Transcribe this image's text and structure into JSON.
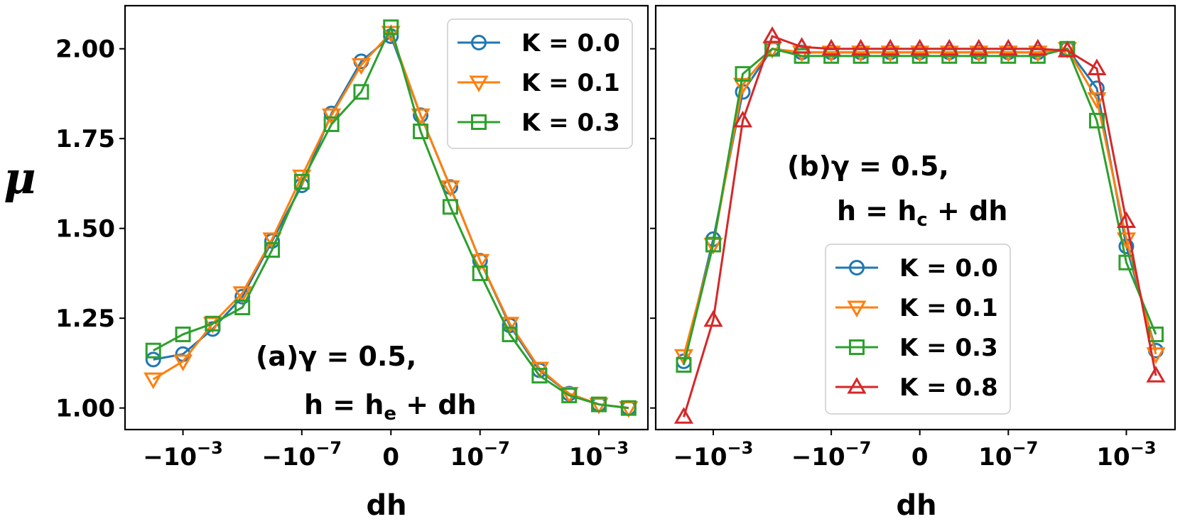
{
  "chart_data": [
    {
      "type": "line",
      "panel": "(a)",
      "annotation_line1": "(a)γ = 0.5,",
      "annotation_line2": "h = h",
      "annotation_sub": "e",
      "annotation_line2_rest": " + dh",
      "xlabel": "dh",
      "ylabel": "μ",
      "ylim": [
        0.94,
        2.12
      ],
      "yticks": [
        "1.00",
        "1.25",
        "1.50",
        "1.75",
        "2.00"
      ],
      "ytick_values": [
        1.0,
        1.25,
        1.5,
        1.75,
        2.0
      ],
      "xticks": [
        {
          "index": 1,
          "base": "−10",
          "exp": "−3"
        },
        {
          "index": 5,
          "base": "−10",
          "exp": "−7"
        },
        {
          "index": 8,
          "base": "0",
          "exp": ""
        },
        {
          "index": 11,
          "base": "10",
          "exp": "−7"
        },
        {
          "index": 15,
          "base": "10",
          "exp": "−3"
        }
      ],
      "x_index_range": [
        -0.95,
        16.65
      ],
      "legend_position": "upper right",
      "series": [
        {
          "name": "K = 0.0",
          "color": "#1f77b4",
          "marker": "circle",
          "x": [
            0,
            1,
            2,
            3,
            4,
            5,
            6,
            7,
            8,
            9,
            10,
            11,
            12,
            13,
            14,
            15,
            16
          ],
          "values": [
            1.135,
            1.15,
            1.22,
            1.31,
            1.465,
            1.62,
            1.82,
            1.965,
            2.035,
            1.815,
            1.615,
            1.41,
            1.23,
            1.105,
            1.04,
            1.01,
            1.0
          ]
        },
        {
          "name": "K = 0.1",
          "color": "#ff7f0e",
          "marker": "triangle-down",
          "x": [
            0,
            1,
            2,
            3,
            4,
            5,
            6,
            7,
            8,
            9,
            10,
            11,
            12,
            13,
            14,
            15,
            16
          ],
          "values": [
            1.08,
            1.13,
            1.235,
            1.32,
            1.47,
            1.645,
            1.815,
            1.955,
            2.045,
            1.815,
            1.615,
            1.41,
            1.235,
            1.11,
            1.04,
            1.01,
            1.0
          ]
        },
        {
          "name": "K = 0.3",
          "color": "#2ca02c",
          "marker": "square",
          "x": [
            0,
            1,
            2,
            3,
            4,
            5,
            6,
            7,
            8,
            9,
            10,
            11,
            12,
            13,
            14,
            15,
            16
          ],
          "values": [
            1.16,
            1.205,
            1.235,
            1.28,
            1.44,
            1.63,
            1.79,
            1.88,
            2.06,
            1.77,
            1.56,
            1.375,
            1.205,
            1.09,
            1.035,
            1.01,
            1.0
          ]
        }
      ]
    },
    {
      "type": "line",
      "panel": "(b)",
      "annotation_line1": "(b)γ = 0.5,",
      "annotation_line2": "h = h",
      "annotation_sub": "c",
      "annotation_line2_rest": " + dh",
      "xlabel": "dh",
      "ylabel": "",
      "ylim": [
        0.94,
        2.12
      ],
      "xticks": [
        {
          "index": 1,
          "base": "−10",
          "exp": "−3"
        },
        {
          "index": 5,
          "base": "−10",
          "exp": "−7"
        },
        {
          "index": 8,
          "base": "0",
          "exp": ""
        },
        {
          "index": 11,
          "base": "10",
          "exp": "−7"
        },
        {
          "index": 15,
          "base": "10",
          "exp": "−3"
        }
      ],
      "x_index_range": [
        -0.95,
        16.65
      ],
      "legend_position": "lower center",
      "series": [
        {
          "name": "K = 0.0",
          "color": "#1f77b4",
          "marker": "circle",
          "x": [
            0,
            1,
            2,
            3,
            4,
            5,
            6,
            7,
            8,
            9,
            10,
            11,
            12,
            13,
            14,
            15,
            16
          ],
          "values": [
            1.13,
            1.47,
            1.88,
            2.0,
            1.99,
            1.99,
            1.99,
            1.99,
            1.99,
            1.99,
            1.99,
            1.99,
            1.99,
            2.0,
            1.89,
            1.45,
            1.16
          ]
        },
        {
          "name": "K = 0.1",
          "color": "#ff7f0e",
          "marker": "triangle-down",
          "x": [
            0,
            1,
            2,
            3,
            4,
            5,
            6,
            7,
            8,
            9,
            10,
            11,
            12,
            13,
            14,
            15,
            16
          ],
          "values": [
            1.145,
            1.455,
            1.9,
            2.0,
            1.99,
            1.99,
            1.99,
            1.99,
            1.99,
            1.99,
            1.99,
            1.99,
            1.99,
            2.0,
            1.86,
            1.47,
            1.15
          ]
        },
        {
          "name": "K = 0.3",
          "color": "#2ca02c",
          "marker": "square",
          "x": [
            0,
            1,
            2,
            3,
            4,
            5,
            6,
            7,
            8,
            9,
            10,
            11,
            12,
            13,
            14,
            15,
            16
          ],
          "values": [
            1.12,
            1.455,
            1.93,
            2.0,
            1.98,
            1.98,
            1.98,
            1.98,
            1.98,
            1.98,
            1.98,
            1.98,
            1.98,
            2.0,
            1.8,
            1.405,
            1.205
          ]
        },
        {
          "name": "K = 0.8",
          "color": "#d62728",
          "marker": "triangle-up",
          "x": [
            0,
            1,
            2,
            3,
            4,
            5,
            6,
            7,
            8,
            9,
            10,
            11,
            12,
            13,
            14,
            15,
            16
          ],
          "values": [
            0.975,
            1.245,
            1.8,
            2.035,
            2.005,
            2.0,
            2.0,
            2.0,
            2.0,
            2.0,
            2.0,
            2.0,
            2.0,
            1.995,
            1.945,
            1.52,
            1.09
          ]
        }
      ]
    }
  ]
}
